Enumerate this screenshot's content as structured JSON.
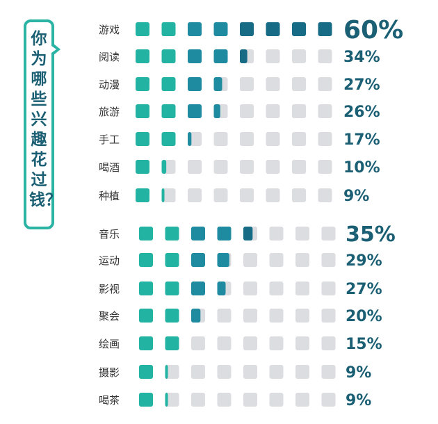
{
  "title": "你为哪些兴趣花过钱？",
  "colors": {
    "light_teal": "#23b3a3",
    "mid_teal": "#1f8ba0",
    "dark_teal": "#176b85",
    "empty": "#dcdde0",
    "text": "#1a5f73"
  },
  "chart_data": [
    {
      "type": "bar",
      "cells_per_row": 8,
      "percent_per_cell": 7.5,
      "categories": [
        "游戏",
        "阅读",
        "动漫",
        "旅游",
        "手工",
        "喝酒",
        "种植"
      ],
      "values": [
        60,
        34,
        27,
        26,
        17,
        10,
        9
      ],
      "labels": [
        "60%",
        "34%",
        "27%",
        "26%",
        "17%",
        "10%",
        "9%"
      ]
    },
    {
      "type": "bar",
      "cells_per_row": 8,
      "percent_per_cell": 7.5,
      "categories": [
        "音乐",
        "运动",
        "影视",
        "聚会",
        "绘画",
        "摄影",
        "喝茶"
      ],
      "values": [
        35,
        29,
        27,
        20,
        15,
        9,
        9
      ],
      "labels": [
        "35%",
        "29%",
        "27%",
        "20%",
        "15%",
        "9%",
        "9%"
      ]
    }
  ]
}
